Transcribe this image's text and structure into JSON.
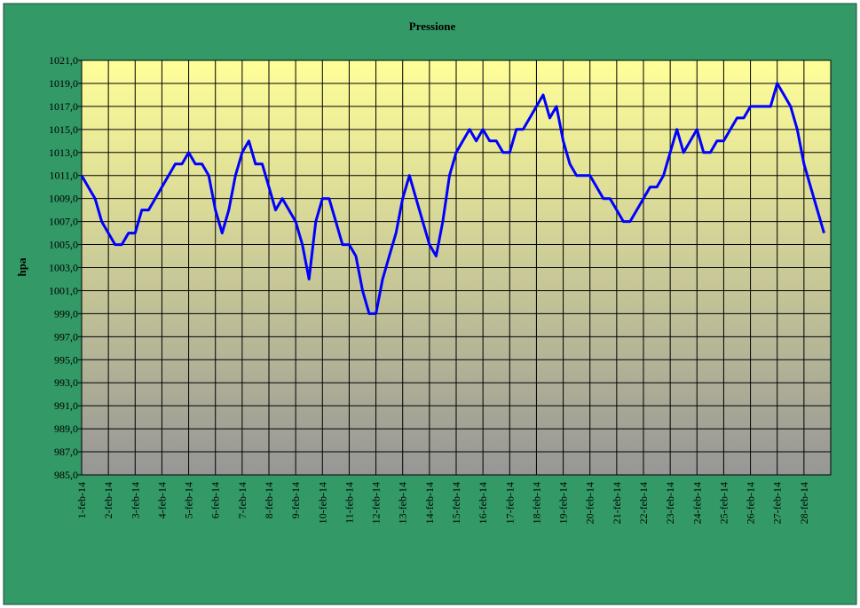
{
  "chart_data": {
    "type": "line",
    "title": "Pressione",
    "y_label": "hpa",
    "categories": [
      "1-feb-14",
      null,
      null,
      null,
      "2-feb-14",
      null,
      null,
      null,
      "3-feb-14",
      null,
      null,
      null,
      "4-feb-14",
      null,
      null,
      null,
      "5-feb-14",
      null,
      null,
      null,
      "6-feb-14",
      null,
      null,
      null,
      "7-feb-14",
      null,
      null,
      null,
      "8-feb-14",
      null,
      null,
      null,
      "9-feb-14",
      null,
      null,
      null,
      "10-feb-14",
      null,
      null,
      null,
      "11-feb-14",
      null,
      null,
      null,
      "12-feb-14",
      null,
      null,
      null,
      "13-feb-14",
      null,
      null,
      null,
      "14-feb-14",
      null,
      null,
      null,
      "15-feb-14",
      null,
      null,
      null,
      "16-feb-14",
      null,
      null,
      null,
      "17-feb-14",
      null,
      null,
      null,
      "18-feb-14",
      null,
      null,
      null,
      "19-feb-14",
      null,
      null,
      null,
      "20-feb-14",
      null,
      null,
      null,
      "21-feb-14",
      null,
      null,
      null,
      "22-feb-14",
      null,
      null,
      null,
      "23-feb-14",
      null,
      null,
      null,
      "24-feb-14",
      null,
      null,
      null,
      "25-feb-14",
      null,
      null,
      null,
      "26-feb-14",
      null,
      null,
      null,
      "27-feb-14",
      null,
      null,
      null,
      "28-feb-14",
      null,
      null,
      null
    ],
    "series": [
      {
        "color": "#0000ff",
        "values": [
          1011,
          1010,
          1009,
          1007,
          1006,
          1005,
          1005,
          1006,
          1006,
          1008,
          1008,
          1009,
          1010,
          1011,
          1012,
          1012,
          1013,
          1012,
          1012,
          1011,
          1008,
          1006,
          1008,
          1011,
          1013,
          1014,
          1012,
          1012,
          1010,
          1008,
          1009,
          1008,
          1007,
          1005,
          1002,
          1007,
          1009,
          1009,
          1007,
          1005,
          1005,
          1004,
          1001,
          999,
          999,
          1002,
          1004,
          1006,
          1009,
          1011,
          1009,
          1007,
          1005,
          1004,
          1007,
          1011,
          1013,
          1014,
          1015,
          1014,
          1015,
          1014,
          1014,
          1013,
          1013,
          1015,
          1015,
          1016,
          1017,
          1018,
          1016,
          1017,
          1014,
          1012,
          1011,
          1011,
          1011,
          1010,
          1009,
          1009,
          1008,
          1007,
          1007,
          1008,
          1009,
          1010,
          1010,
          1011,
          1013,
          1015,
          1013,
          1014,
          1015,
          1013,
          1013,
          1014,
          1014,
          1015,
          1016,
          1016,
          1017,
          1017,
          1017,
          1017,
          1019,
          1018,
          1017,
          1015,
          1012,
          1010,
          1008,
          1006
        ]
      }
    ],
    "ylim": [
      985,
      1021
    ],
    "yticks": [
      {
        "value": 985,
        "label": "985,0"
      },
      {
        "value": 987,
        "label": "987,0"
      },
      {
        "value": 989,
        "label": "989,0"
      },
      {
        "value": 991,
        "label": "991,0"
      },
      {
        "value": 993,
        "label": "993,0"
      },
      {
        "value": 995,
        "label": "995,0"
      },
      {
        "value": 997,
        "label": "997,0"
      },
      {
        "value": 999,
        "label": "999,0"
      },
      {
        "value": 1001,
        "label": "1001,0"
      },
      {
        "value": 1003,
        "label": "1003,0"
      },
      {
        "value": 1005,
        "label": "1005,0"
      },
      {
        "value": 1007,
        "label": "1007,0"
      },
      {
        "value": 1009,
        "label": "1009,0"
      },
      {
        "value": 1011,
        "label": "1011,0"
      },
      {
        "value": 1013,
        "label": "1013,0"
      },
      {
        "value": 1015,
        "label": "1015,0"
      },
      {
        "value": 1017,
        "label": "1017,0"
      },
      {
        "value": 1019,
        "label": "1019,0"
      },
      {
        "value": 1021,
        "label": "1021,0"
      }
    ],
    "grid": true
  }
}
